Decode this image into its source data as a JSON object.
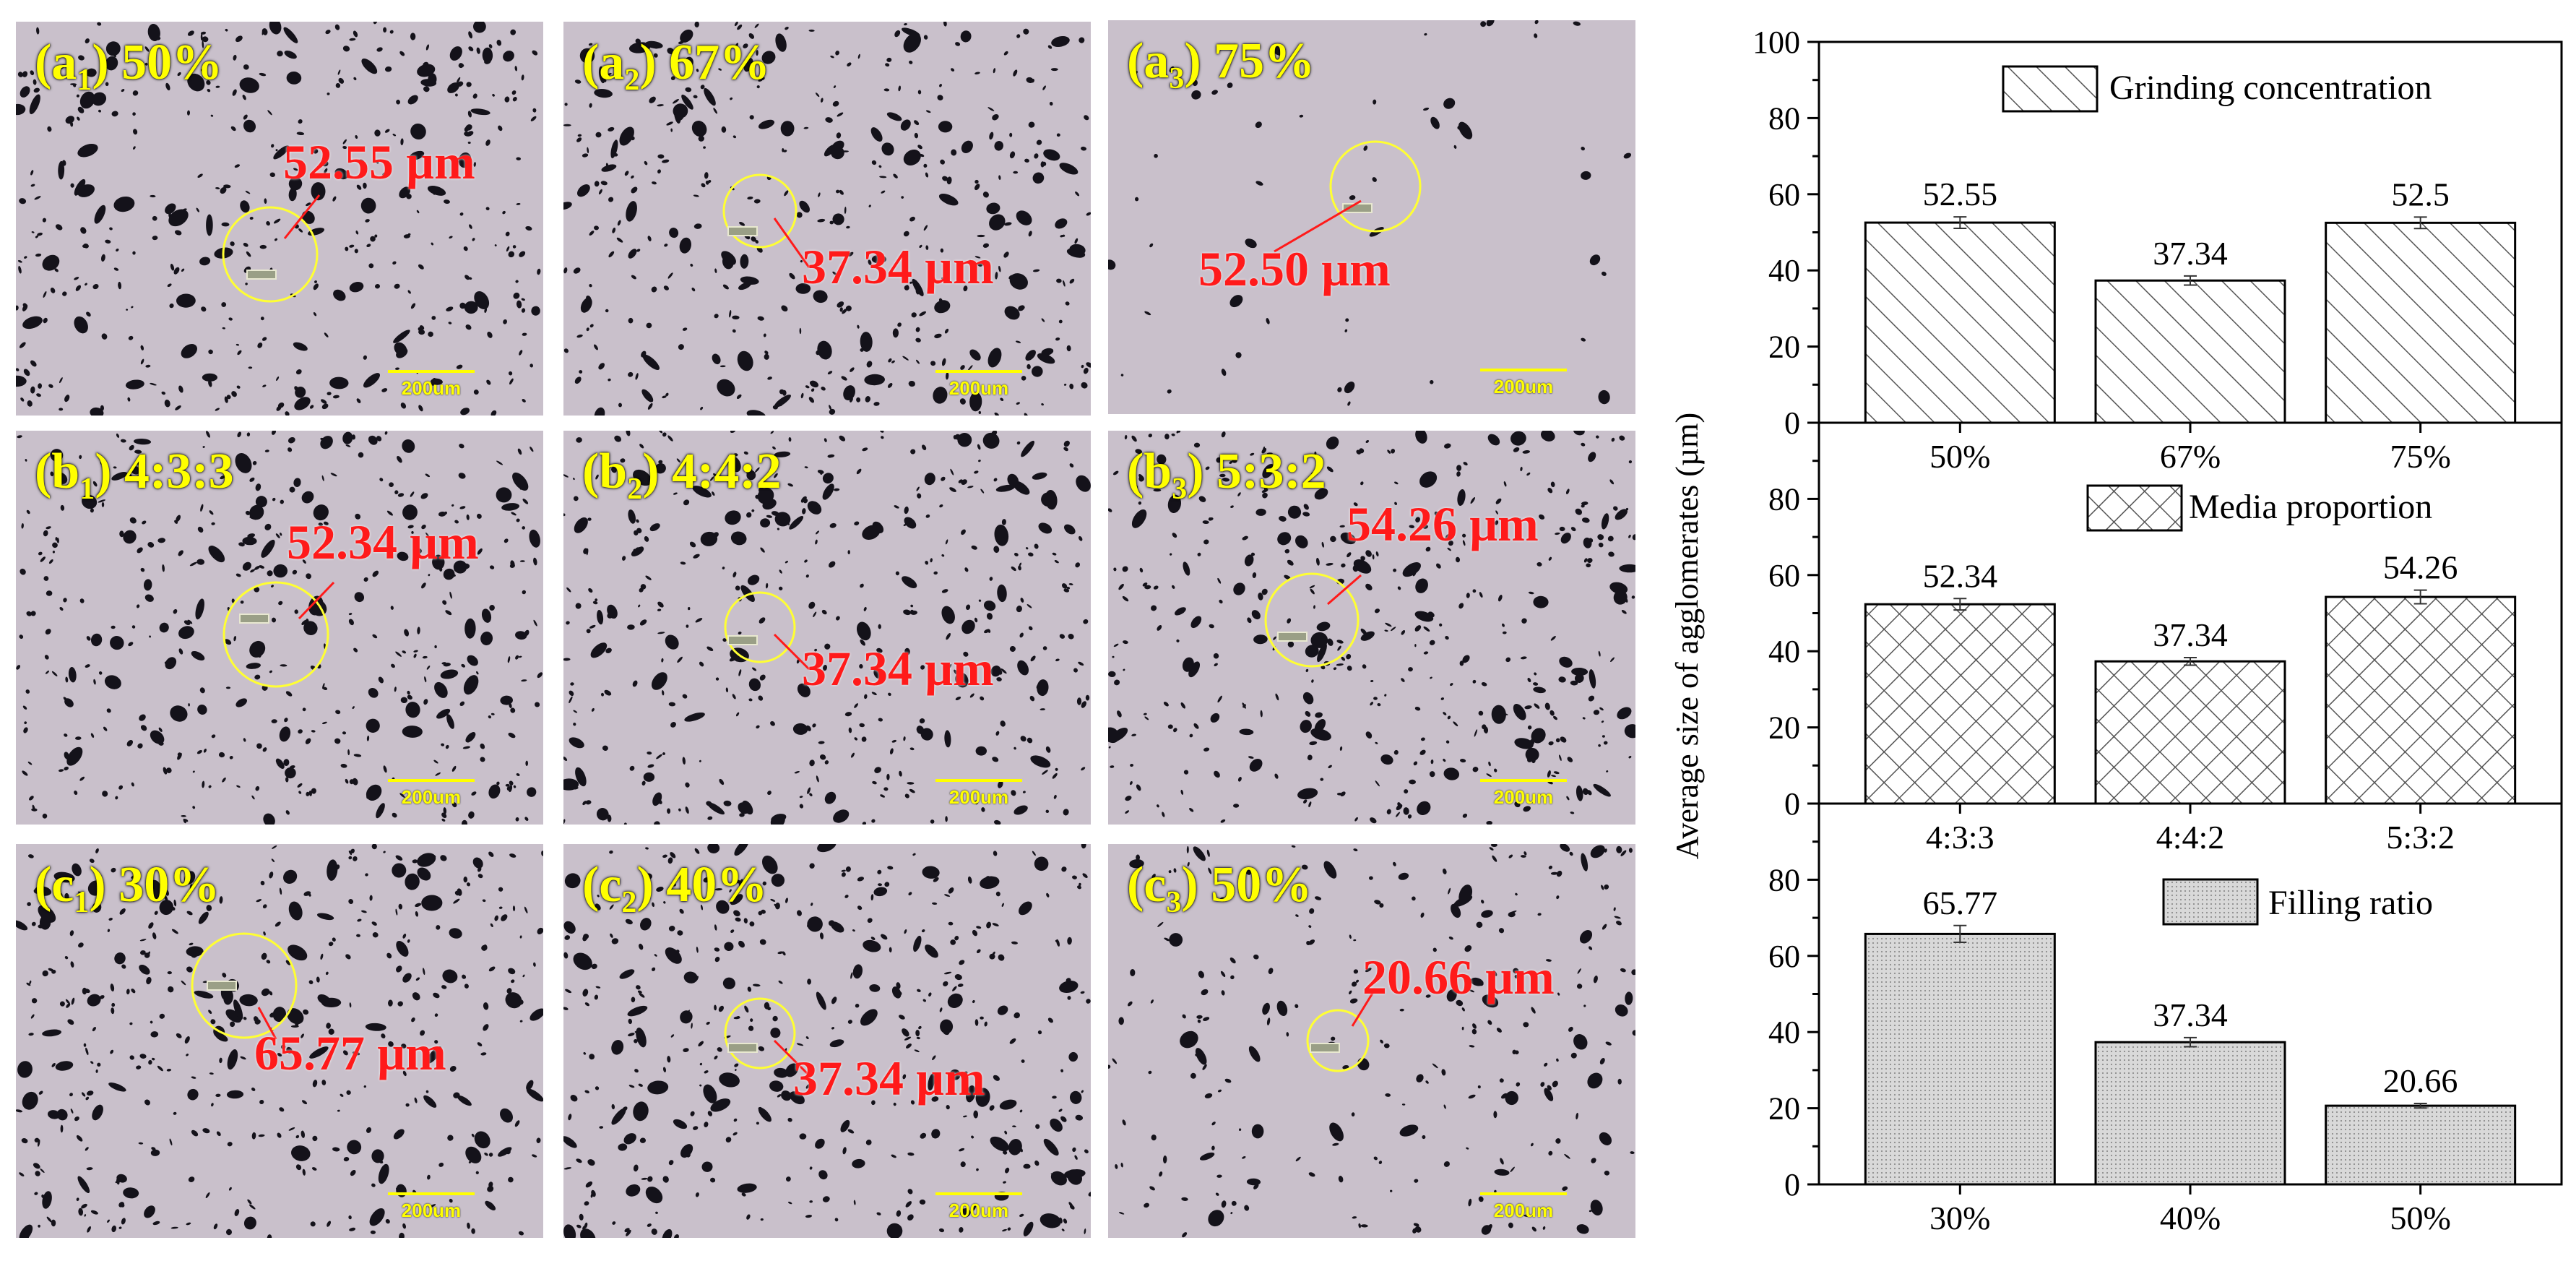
{
  "panels": [
    {
      "id": "a1",
      "prefix": "(a",
      "sub": "1",
      "suffix": ") 50%",
      "measure": "52.55 µm",
      "scale": "200um"
    },
    {
      "id": "a2",
      "prefix": "(a",
      "sub": "2",
      "suffix": ") 67%",
      "measure": "37.34 µm",
      "scale": "200um"
    },
    {
      "id": "a3",
      "prefix": "(a",
      "sub": "3",
      "suffix": ") 75%",
      "measure": "52.50 µm",
      "scale": "200um"
    },
    {
      "id": "b1",
      "prefix": "(b",
      "sub": "1",
      "suffix": ") 4:3:3",
      "measure": "52.34 µm",
      "scale": "200um"
    },
    {
      "id": "b2",
      "prefix": "(b",
      "sub": "2",
      "suffix": ") 4:4:2",
      "measure": "37.34 µm",
      "scale": "200um"
    },
    {
      "id": "b3",
      "prefix": "(b",
      "sub": "3",
      "suffix": ") 5:3:2",
      "measure": "54.26 µm",
      "scale": "200um"
    },
    {
      "id": "c1",
      "prefix": "(c",
      "sub": "1",
      "suffix": ") 30%",
      "measure": "65.77 µm",
      "scale": "200um"
    },
    {
      "id": "c2",
      "prefix": "(c",
      "sub": "2",
      "suffix": ") 40%",
      "measure": "37.34 µm",
      "scale": "200um"
    },
    {
      "id": "c3",
      "prefix": "(c",
      "sub": "3",
      "suffix": ") 50%",
      "measure": "20.66 µm",
      "scale": "200um"
    }
  ],
  "colors": {
    "label": "#ffff00",
    "measure": "#ff1a1a",
    "background": "#c9c0cb",
    "particles": "#14121a"
  },
  "chart_data": {
    "type": "bar",
    "ylabel": "Average size of agglomerates (µm)",
    "subplots": [
      {
        "legend": "Grinding concentration",
        "pattern": "diagonal-hatch",
        "categories": [
          "50%",
          "67%",
          "75%"
        ],
        "values": [
          52.55,
          37.34,
          52.5
        ],
        "value_labels": [
          "52.55",
          "37.34",
          "52.5"
        ],
        "errors": [
          1.5,
          1.2,
          1.5
        ],
        "ylim": [
          0,
          100
        ],
        "yticks": [
          "0",
          "20",
          "40",
          "60",
          "80",
          "100"
        ]
      },
      {
        "legend": "Media proportion",
        "pattern": "cross-hatch",
        "categories": [
          "4:3:3",
          "4:4:2",
          "5:3:2"
        ],
        "values": [
          52.34,
          37.34,
          54.26
        ],
        "value_labels": [
          "52.34",
          "37.34",
          "54.26"
        ],
        "errors": [
          1.5,
          1.0,
          1.8
        ],
        "ylim": [
          0,
          100
        ],
        "yticks": [
          "0",
          "20",
          "40",
          "60",
          "80"
        ]
      },
      {
        "legend": "Filling ratio",
        "pattern": "dots",
        "categories": [
          "30%",
          "40%",
          "50%"
        ],
        "values": [
          65.77,
          37.34,
          20.66
        ],
        "value_labels": [
          "65.77",
          "37.34",
          "20.66"
        ],
        "errors": [
          2.2,
          1.2,
          0.6
        ],
        "ylim": [
          0,
          100
        ],
        "yticks": [
          "0",
          "20",
          "40",
          "60",
          "80"
        ]
      }
    ]
  }
}
